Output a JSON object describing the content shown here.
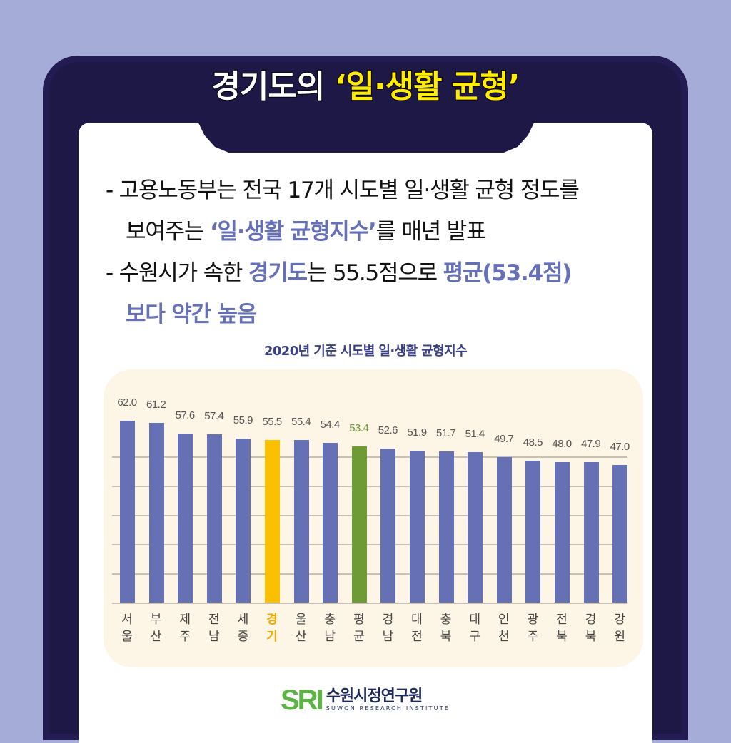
{
  "header": {
    "title_prefix": "경기도의 ",
    "title_highlight": "‘일·생활 균형’"
  },
  "bullets": [
    {
      "line1": "- 고용노동부는 전국 17개 시도별 일·생활 균형 정도를",
      "line2_pre": "보여주는 ",
      "line2_accent": "‘일·생활 균형지수’",
      "line2_post": "를 매년 발표"
    },
    {
      "line1_pre": "- 수원시가 속한 ",
      "line1_accent1": "경기도",
      "line1_mid": "는 55.5점으로 ",
      "line1_accent2": "평균(53.4점)",
      "line2_accent": "보다 약간 높음"
    }
  ],
  "colors": {
    "background": "#a5acd8",
    "frame": "#1e1847",
    "bar_default": "#6670b4",
    "bar_gyeonggi": "#f9c000",
    "bar_average": "#6e9b35",
    "accent_text": "#6670b8",
    "title_highlight": "#ffec00",
    "panel": "#fdf5e6"
  },
  "chart_data": {
    "type": "bar",
    "title": "2020년 기준 시도별 일·생활 균형지수",
    "xlabel": "",
    "ylabel": "",
    "grid": true,
    "categories": [
      "서울",
      "부산",
      "제주",
      "전남",
      "세종",
      "경기",
      "울산",
      "충남",
      "평균",
      "경남",
      "대전",
      "충북",
      "대구",
      "인천",
      "광주",
      "전북",
      "경북",
      "강원"
    ],
    "category_labels": [
      [
        "서",
        "울"
      ],
      [
        "부",
        "산"
      ],
      [
        "제",
        "주"
      ],
      [
        "전",
        "남"
      ],
      [
        "세",
        "종"
      ],
      [
        "경",
        "기"
      ],
      [
        "울",
        "산"
      ],
      [
        "충",
        "남"
      ],
      [
        "평",
        "균"
      ],
      [
        "경",
        "남"
      ],
      [
        "대",
        "전"
      ],
      [
        "충",
        "북"
      ],
      [
        "대",
        "구"
      ],
      [
        "인",
        "천"
      ],
      [
        "광",
        "주"
      ],
      [
        "전",
        "북"
      ],
      [
        "경",
        "북"
      ],
      [
        "강",
        "원"
      ]
    ],
    "values": [
      62.0,
      61.2,
      57.6,
      57.4,
      55.9,
      55.5,
      55.4,
      54.4,
      53.4,
      52.6,
      51.9,
      51.7,
      51.4,
      49.7,
      48.5,
      48.0,
      47.9,
      47.0
    ],
    "value_labels": [
      "62.0",
      "61.2",
      "57.6",
      "57.4",
      "55.9",
      "55.5",
      "55.4",
      "54.4",
      "53.4",
      "52.6",
      "51.9",
      "51.7",
      "51.4",
      "49.7",
      "48.5",
      "48.0",
      "47.9",
      "47.0"
    ],
    "highlight": {
      "경기": "#f9c000",
      "평균": "#6e9b35"
    },
    "ylim": [
      0,
      65
    ]
  },
  "logo": {
    "mark": "SRI",
    "name_kr": "수원시정연구원",
    "name_en": "SUWON RESEARCH INSTITUTE"
  }
}
